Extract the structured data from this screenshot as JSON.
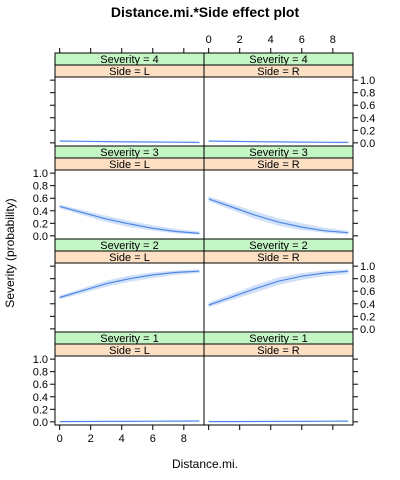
{
  "chart_data": {
    "type": "line",
    "title": "Distance.mi.*Side effect plot",
    "xlabel": "Distance.mi.",
    "ylabel": "Severity (probability)",
    "xlim": [
      -0.3,
      9.3
    ],
    "ylim": [
      -0.05,
      1.05
    ],
    "xticks": [
      0,
      2,
      4,
      6,
      8
    ],
    "yticks": [
      0.0,
      0.2,
      0.4,
      0.6,
      0.8,
      1.0
    ],
    "xtick_labels": [
      "0",
      "2",
      "4",
      "6",
      "8"
    ],
    "ytick_labels": [
      "0.0",
      "0.2",
      "0.4",
      "0.6",
      "0.8",
      "1.0"
    ],
    "colors": {
      "line": "#4f86e8",
      "band": "#c9dcf7",
      "strip_severity": "#c4f5c4",
      "strip_side": "#fde0c4"
    },
    "strip_prefix_severity": "Severity = ",
    "strip_prefix_side": "Side = ",
    "panels": [
      {
        "severity": "4",
        "side": "L",
        "x": [
          0,
          1.5,
          3,
          4.5,
          6,
          7.5,
          9
        ],
        "y": [
          0.03,
          0.025,
          0.02,
          0.016,
          0.013,
          0.01,
          0.008
        ],
        "lower": [
          0.02,
          0.017,
          0.013,
          0.01,
          0.007,
          0.005,
          0.003
        ],
        "upper": [
          0.04,
          0.034,
          0.028,
          0.023,
          0.02,
          0.017,
          0.014
        ]
      },
      {
        "severity": "4",
        "side": "R",
        "x": [
          0,
          1.5,
          3,
          4.5,
          6,
          7.5,
          9
        ],
        "y": [
          0.03,
          0.024,
          0.019,
          0.015,
          0.012,
          0.009,
          0.007
        ],
        "lower": [
          0.02,
          0.016,
          0.012,
          0.009,
          0.006,
          0.004,
          0.002
        ],
        "upper": [
          0.04,
          0.033,
          0.027,
          0.022,
          0.019,
          0.016,
          0.013
        ]
      },
      {
        "severity": "3",
        "side": "L",
        "x": [
          0,
          1.5,
          3,
          4.5,
          6,
          7.5,
          9
        ],
        "y": [
          0.47,
          0.37,
          0.27,
          0.19,
          0.12,
          0.07,
          0.04
        ],
        "lower": [
          0.44,
          0.33,
          0.22,
          0.14,
          0.08,
          0.04,
          0.02
        ],
        "upper": [
          0.5,
          0.41,
          0.32,
          0.24,
          0.17,
          0.11,
          0.07
        ]
      },
      {
        "severity": "3",
        "side": "R",
        "x": [
          0,
          1.5,
          3,
          4.5,
          6,
          7.5,
          9
        ],
        "y": [
          0.59,
          0.46,
          0.33,
          0.22,
          0.14,
          0.08,
          0.05
        ],
        "lower": [
          0.55,
          0.41,
          0.27,
          0.16,
          0.09,
          0.05,
          0.02
        ],
        "upper": [
          0.63,
          0.51,
          0.39,
          0.28,
          0.2,
          0.13,
          0.08
        ]
      },
      {
        "severity": "2",
        "side": "L",
        "x": [
          0,
          1.5,
          3,
          4.5,
          6,
          7.5,
          9
        ],
        "y": [
          0.5,
          0.61,
          0.72,
          0.8,
          0.86,
          0.9,
          0.92
        ],
        "lower": [
          0.47,
          0.57,
          0.67,
          0.75,
          0.81,
          0.86,
          0.89
        ],
        "upper": [
          0.53,
          0.65,
          0.77,
          0.85,
          0.9,
          0.93,
          0.95
        ]
      },
      {
        "severity": "2",
        "side": "R",
        "x": [
          0,
          1.5,
          3,
          4.5,
          6,
          7.5,
          9
        ],
        "y": [
          0.38,
          0.51,
          0.64,
          0.76,
          0.84,
          0.89,
          0.92
        ],
        "lower": [
          0.34,
          0.46,
          0.58,
          0.7,
          0.78,
          0.84,
          0.88
        ],
        "upper": [
          0.42,
          0.56,
          0.7,
          0.82,
          0.89,
          0.93,
          0.95
        ]
      },
      {
        "severity": "1",
        "side": "L",
        "x": [
          0,
          1.5,
          3,
          4.5,
          6,
          7.5,
          9
        ],
        "y": [
          0.005,
          0.006,
          0.007,
          0.008,
          0.01,
          0.012,
          0.014
        ],
        "lower": [
          0.002,
          0.003,
          0.003,
          0.004,
          0.005,
          0.006,
          0.007
        ],
        "upper": [
          0.009,
          0.01,
          0.012,
          0.014,
          0.016,
          0.019,
          0.022
        ]
      },
      {
        "severity": "1",
        "side": "R",
        "x": [
          0,
          1.5,
          3,
          4.5,
          6,
          7.5,
          9
        ],
        "y": [
          0.004,
          0.005,
          0.006,
          0.007,
          0.008,
          0.01,
          0.012
        ],
        "lower": [
          0.002,
          0.002,
          0.003,
          0.003,
          0.004,
          0.005,
          0.006
        ],
        "upper": [
          0.008,
          0.009,
          0.01,
          0.012,
          0.014,
          0.017,
          0.02
        ]
      }
    ]
  }
}
